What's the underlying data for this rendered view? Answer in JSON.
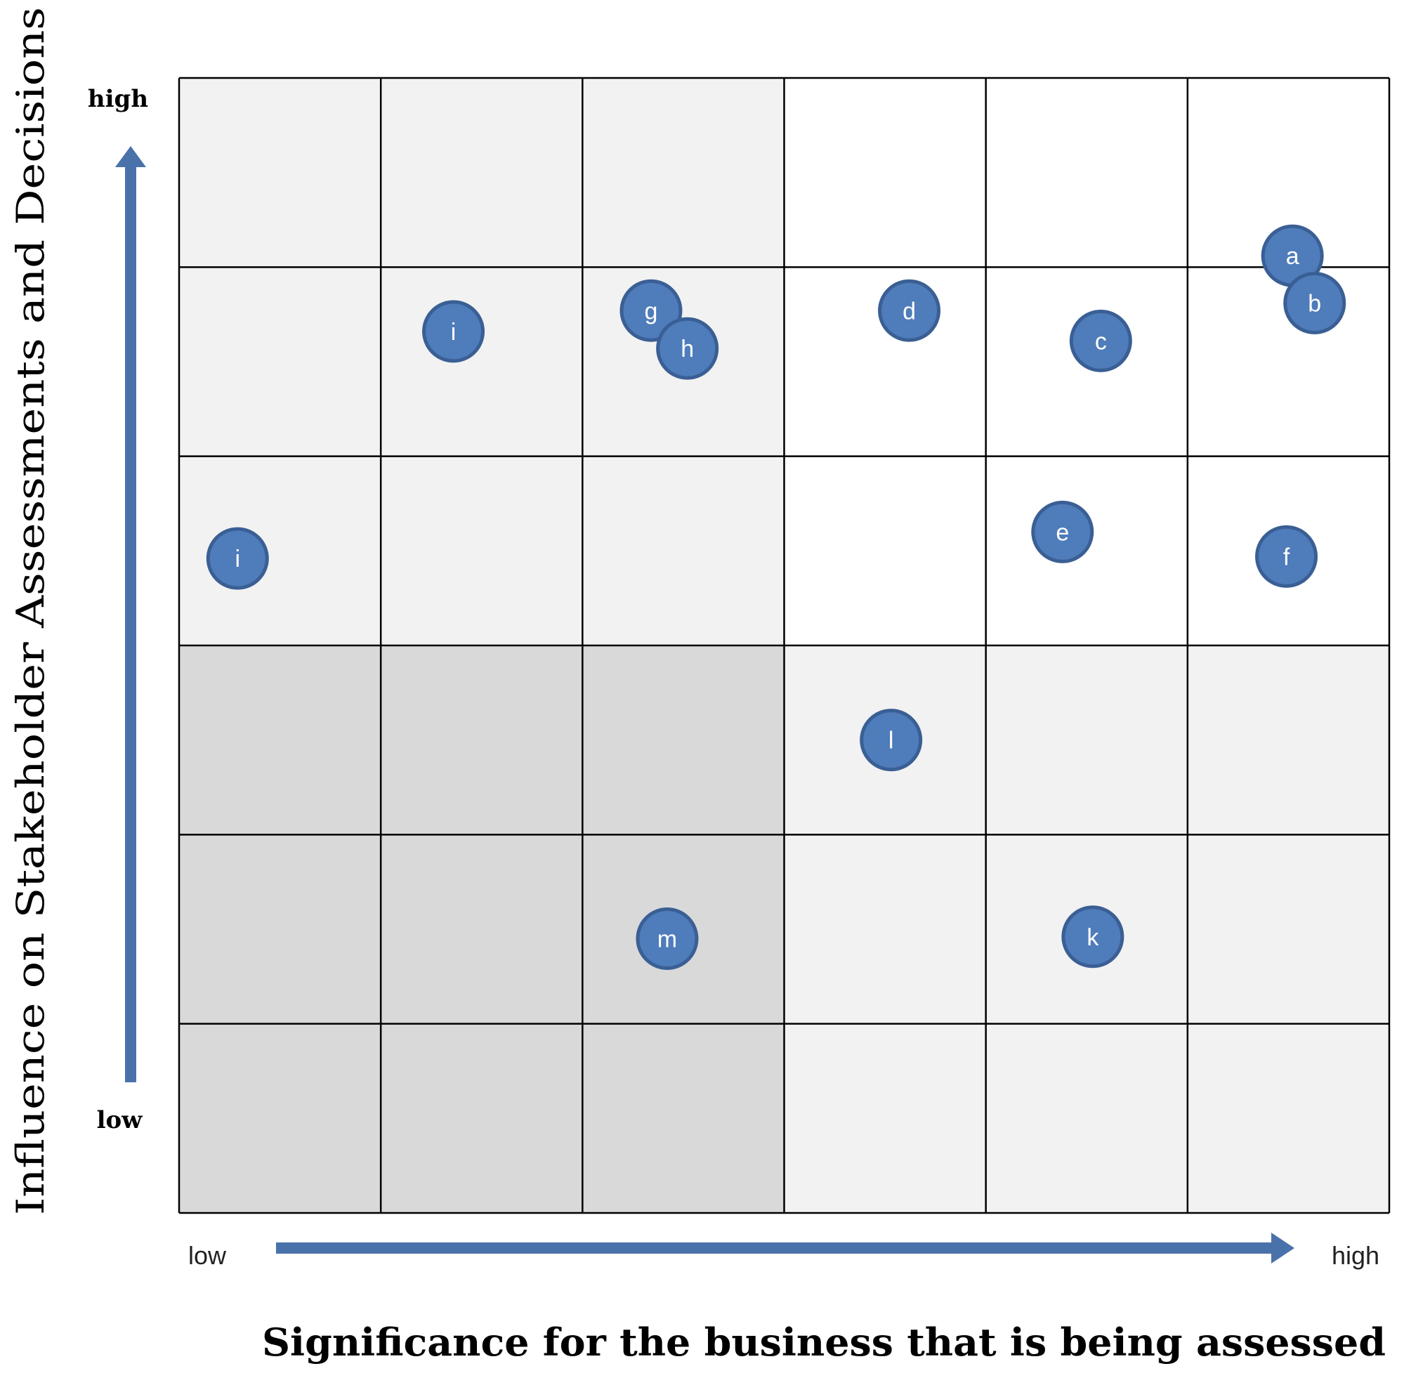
{
  "chart_data": {
    "type": "scatter",
    "xlabel": "Significance for the business that is being assessed",
    "ylabel": "Influence on Stakeholder Assessments and Decisions",
    "x_low": "low",
    "x_high": "high",
    "y_low": "low",
    "y_high": "high",
    "xlim": [
      0,
      6
    ],
    "ylim": [
      0,
      6
    ],
    "grid": {
      "columns": 6,
      "rows": 6,
      "shading": [
        [
          "light",
          "light",
          "light",
          "white",
          "white",
          "white"
        ],
        [
          "light",
          "light",
          "light",
          "white",
          "white",
          "white"
        ],
        [
          "light",
          "light",
          "light",
          "white",
          "white",
          "white"
        ],
        [
          "dark",
          "dark",
          "dark",
          "light",
          "light",
          "light"
        ],
        [
          "dark",
          "dark",
          "dark",
          "light",
          "light",
          "light"
        ],
        [
          "dark",
          "dark",
          "dark",
          "light",
          "light",
          "light"
        ]
      ]
    },
    "points": [
      {
        "label": "a",
        "x": 5.52,
        "y": 5.06
      },
      {
        "label": "b",
        "x": 5.63,
        "y": 4.81
      },
      {
        "label": "c",
        "x": 4.57,
        "y": 4.61
      },
      {
        "label": "d",
        "x": 3.62,
        "y": 4.77
      },
      {
        "label": "e",
        "x": 4.38,
        "y": 3.6
      },
      {
        "label": "f",
        "x": 5.49,
        "y": 3.47
      },
      {
        "label": "g",
        "x": 2.34,
        "y": 4.77
      },
      {
        "label": "h",
        "x": 2.52,
        "y": 4.57
      },
      {
        "label": "i",
        "x": 1.36,
        "y": 4.66
      },
      {
        "label": "i",
        "x": 0.29,
        "y": 3.46
      },
      {
        "label": "l",
        "x": 3.53,
        "y": 2.5
      },
      {
        "label": "m",
        "x": 2.42,
        "y": 1.45
      },
      {
        "label": "k",
        "x": 4.53,
        "y": 1.46
      }
    ]
  },
  "colors": {
    "cell_white": "#ffffff",
    "cell_light": "#f2f2f2",
    "cell_dark": "#d9d9d9",
    "grid_line": "#000000",
    "marker_fill": "#4f7cba",
    "marker_stroke": "#3a5f94",
    "arrow": "#4a72aa"
  }
}
